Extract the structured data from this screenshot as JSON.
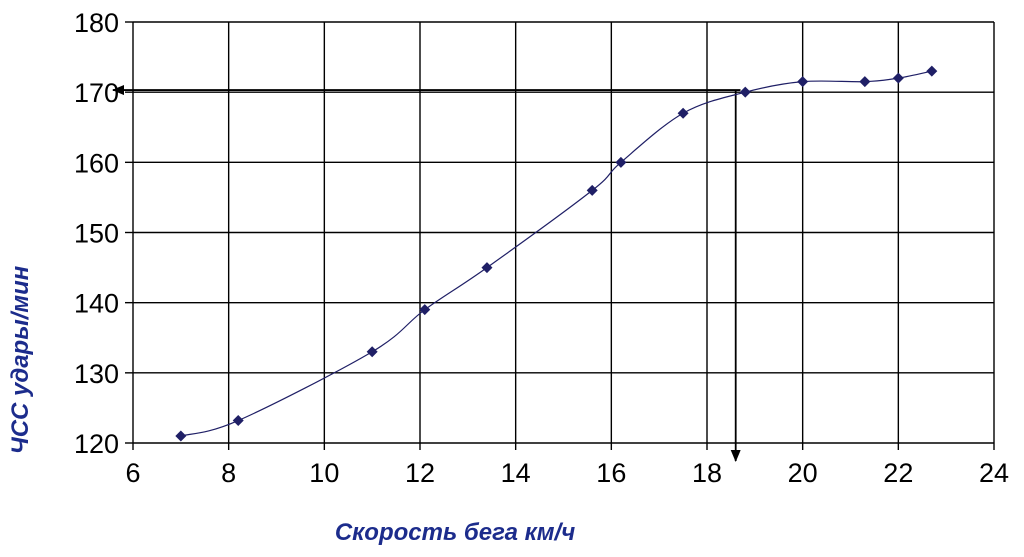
{
  "chart_data": {
    "type": "scatter",
    "xlabel": "Скорость бега км/ч",
    "ylabel": "ЧСС удары/мин",
    "xlim": [
      6,
      24
    ],
    "ylim": [
      120,
      180
    ],
    "x_ticks": [
      "6",
      "8",
      "10",
      "12",
      "14",
      "16",
      "18",
      "20",
      "22",
      "24"
    ],
    "y_ticks": [
      "120",
      "130",
      "140",
      "150",
      "160",
      "170",
      "180"
    ],
    "grid": true,
    "series": [
      {
        "x": [
          7.0,
          8.2,
          11.0,
          12.1,
          13.4,
          15.6,
          16.2,
          17.5,
          18.8,
          20.0,
          21.3,
          22.0,
          22.7
        ],
        "y": [
          121,
          123.2,
          133,
          139,
          145,
          156,
          160,
          167,
          170,
          171.5,
          171.5,
          172,
          173
        ],
        "line": "smooth",
        "marker": "diamond",
        "color": "#1f1f66"
      }
    ],
    "annotations": [
      {
        "type": "arrow-to-y-axis",
        "y": 170.3,
        "from_x": 18.7
      },
      {
        "type": "arrow-to-x-axis",
        "x": 18.6,
        "from_y": 170.3
      }
    ],
    "colors": {
      "axis_title": "#1c2c8c",
      "grid": "#000000",
      "series": "#1f1f66"
    }
  }
}
